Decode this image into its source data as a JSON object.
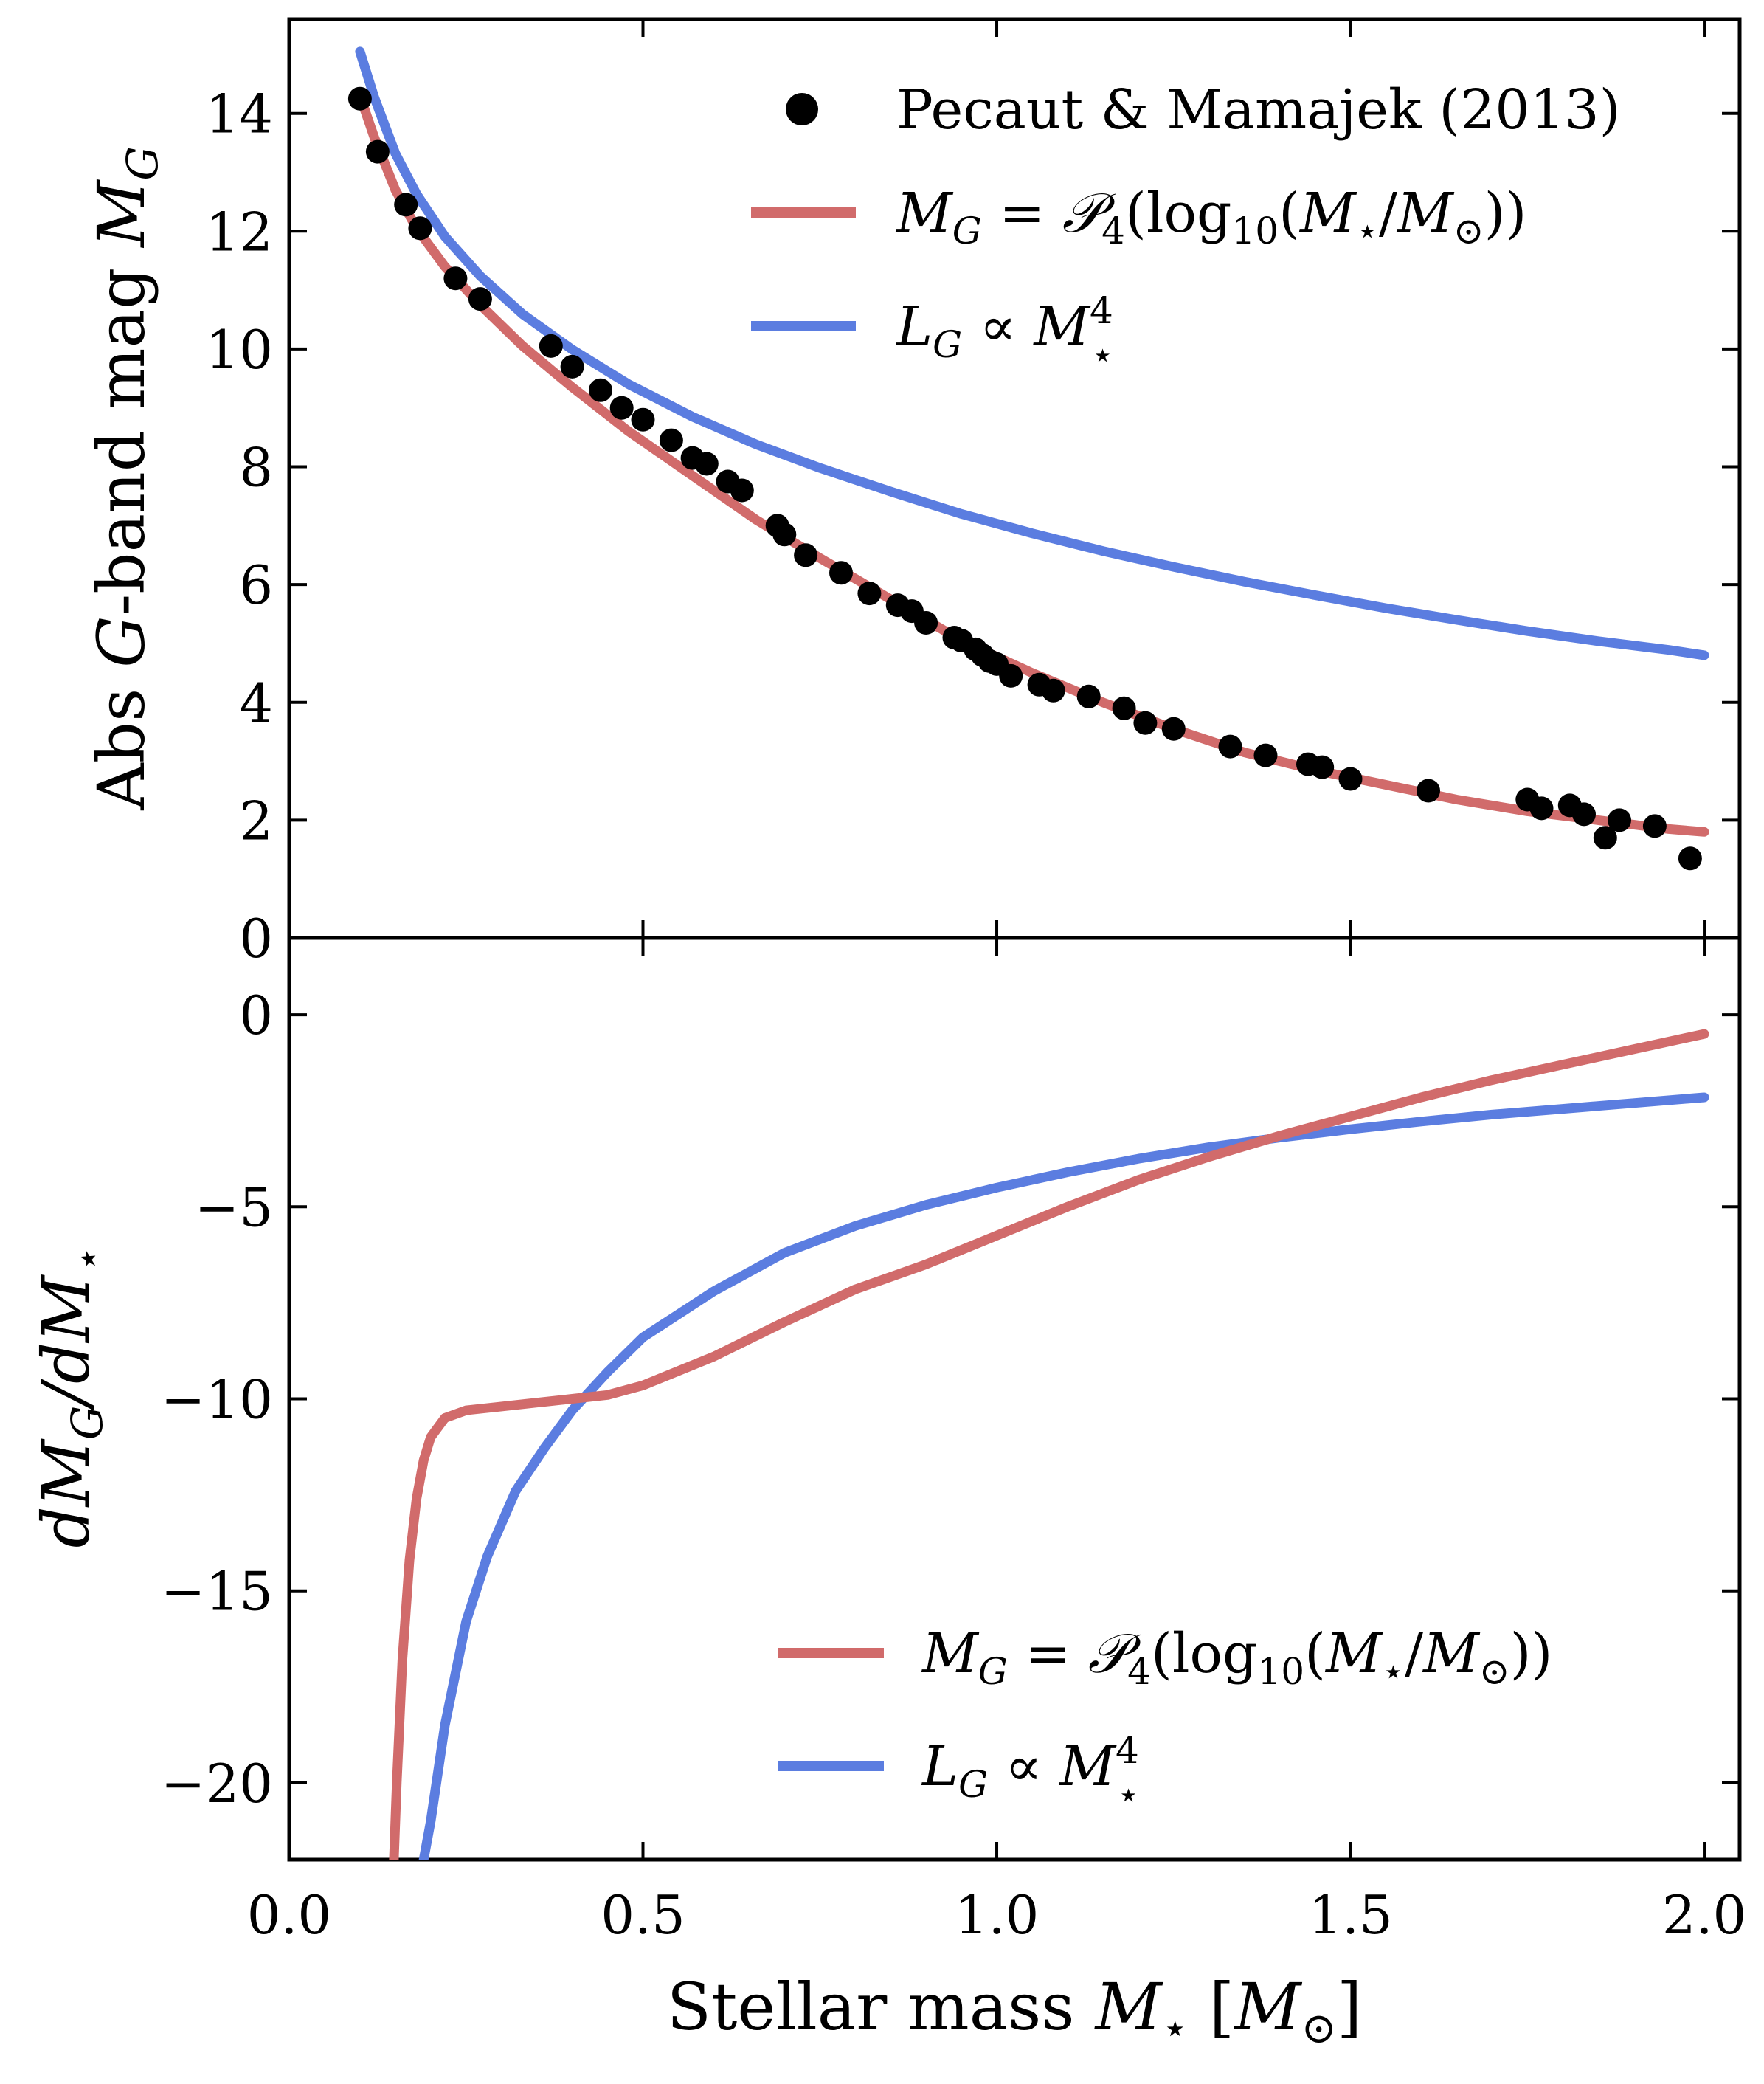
{
  "chart_data": [
    {
      "panel": "top",
      "type": "scatter+line",
      "ylabel": "Abs G-band mag M_G",
      "ylabel_parts": {
        "prefix": "Abs ",
        "g": "G",
        "mid": "-band mag ",
        "m": "M",
        "sub": "G"
      },
      "xlim": [
        0.0,
        2.05
      ],
      "ylim": [
        0,
        15.6
      ],
      "yticks": [
        0,
        2,
        4,
        6,
        8,
        10,
        12,
        14
      ],
      "ytick_labels": [
        "0",
        "2",
        "4",
        "6",
        "8",
        "10",
        "12",
        "14"
      ],
      "legend_position": "top-right",
      "legend": [
        {
          "id": "data",
          "label": "Pecaut & Mamajek (2013)",
          "marker": "circle",
          "color": "#000000"
        },
        {
          "id": "poly",
          "label": "M_G = P_4(log_10(M_star/M_sun))",
          "color": "#d16b6b"
        },
        {
          "id": "power",
          "label": "L_G ∝ M_star^4",
          "color": "#5b7de0"
        }
      ],
      "points": {
        "name": "Pecaut & Mamajek (2013)",
        "x": [
          0.1,
          0.125,
          0.165,
          0.185,
          0.235,
          0.27,
          0.37,
          0.4,
          0.44,
          0.47,
          0.5,
          0.54,
          0.57,
          0.59,
          0.62,
          0.64,
          0.69,
          0.7,
          0.73,
          0.78,
          0.82,
          0.86,
          0.88,
          0.9,
          0.94,
          0.95,
          0.97,
          0.98,
          0.99,
          1.0,
          1.02,
          1.06,
          1.08,
          1.13,
          1.18,
          1.21,
          1.25,
          1.33,
          1.38,
          1.44,
          1.46,
          1.5,
          1.61,
          1.75,
          1.77,
          1.81,
          1.83,
          1.86,
          1.88,
          1.93,
          1.98
        ],
        "y": [
          14.25,
          13.35,
          12.45,
          12.05,
          11.2,
          10.85,
          10.05,
          9.7,
          9.3,
          9.0,
          8.8,
          8.45,
          8.15,
          8.05,
          7.75,
          7.6,
          7.0,
          6.85,
          6.5,
          6.2,
          5.85,
          5.65,
          5.55,
          5.35,
          5.1,
          5.05,
          4.9,
          4.8,
          4.7,
          4.65,
          4.45,
          4.3,
          4.2,
          4.1,
          3.9,
          3.65,
          3.55,
          3.25,
          3.1,
          2.95,
          2.9,
          2.7,
          2.5,
          2.35,
          2.2,
          2.25,
          2.1,
          1.7,
          2.0,
          1.9,
          1.35
        ]
      },
      "series": [
        {
          "name": "polynomial fit",
          "x": [
            0.1,
            0.12,
            0.15,
            0.18,
            0.22,
            0.27,
            0.33,
            0.4,
            0.48,
            0.57,
            0.66,
            0.75,
            0.85,
            0.95,
            1.05,
            1.15,
            1.25,
            1.35,
            1.45,
            1.55,
            1.65,
            1.75,
            1.85,
            1.95,
            2.0
          ],
          "y": [
            14.3,
            13.6,
            12.7,
            12.05,
            11.4,
            10.75,
            10.05,
            9.35,
            8.6,
            7.85,
            7.1,
            6.45,
            5.75,
            5.05,
            4.5,
            4.0,
            3.55,
            3.15,
            2.85,
            2.6,
            2.35,
            2.15,
            2.0,
            1.85,
            1.8
          ]
        },
        {
          "name": "power law L_G ∝ M^4",
          "x": [
            0.1,
            0.12,
            0.15,
            0.18,
            0.22,
            0.27,
            0.33,
            0.4,
            0.48,
            0.57,
            0.66,
            0.75,
            0.85,
            0.95,
            1.05,
            1.15,
            1.25,
            1.35,
            1.45,
            1.55,
            1.65,
            1.75,
            1.85,
            1.95,
            2.0
          ],
          "y": [
            15.05,
            14.28,
            13.32,
            12.63,
            11.91,
            11.24,
            10.59,
            9.99,
            9.4,
            8.85,
            8.38,
            7.98,
            7.58,
            7.2,
            6.87,
            6.57,
            6.3,
            6.05,
            5.82,
            5.6,
            5.4,
            5.21,
            5.04,
            4.89,
            4.8
          ]
        }
      ]
    },
    {
      "panel": "bottom",
      "type": "line",
      "ylabel": "dM_G/dM_star",
      "xlabel": "Stellar mass M_star [M_sun]",
      "xlabel_prefix": "Stellar mass ",
      "xlim": [
        0.0,
        2.05
      ],
      "ylim": [
        -22,
        2
      ],
      "xticks": [
        0.0,
        0.5,
        1.0,
        1.5,
        2.0
      ],
      "xtick_labels": [
        "0.0",
        "0.5",
        "1.0",
        "1.5",
        "2.0"
      ],
      "yticks": [
        0,
        -5,
        -10,
        -15,
        -20
      ],
      "ytick_labels": [
        "0",
        "−5",
        "−10",
        "−15",
        "−20"
      ],
      "legend_position": "bottom-right",
      "series": [
        {
          "name": "polynomial derivative",
          "x": [
            0.148,
            0.152,
            0.16,
            0.17,
            0.18,
            0.19,
            0.2,
            0.22,
            0.25,
            0.3,
            0.35,
            0.4,
            0.45,
            0.5,
            0.6,
            0.7,
            0.8,
            0.9,
            1.0,
            1.1,
            1.2,
            1.3,
            1.4,
            1.5,
            1.6,
            1.7,
            1.8,
            1.9,
            2.0
          ],
          "y": [
            -22,
            -20.0,
            -16.8,
            -14.2,
            -12.6,
            -11.6,
            -11.0,
            -10.5,
            -10.3,
            -10.2,
            -10.1,
            -10.0,
            -9.9,
            -9.65,
            -8.9,
            -8.0,
            -7.15,
            -6.5,
            -5.75,
            -5.0,
            -4.3,
            -3.7,
            -3.15,
            -2.65,
            -2.15,
            -1.7,
            -1.3,
            -0.9,
            -0.5
          ]
        },
        {
          "name": "power law derivative",
          "x": [
            0.19,
            0.2,
            0.22,
            0.25,
            0.28,
            0.32,
            0.36,
            0.4,
            0.45,
            0.5,
            0.6,
            0.7,
            0.8,
            0.9,
            1.0,
            1.1,
            1.2,
            1.3,
            1.4,
            1.5,
            1.6,
            1.7,
            1.8,
            1.9,
            2.0
          ],
          "y": [
            -22,
            -21.0,
            -18.5,
            -15.8,
            -14.1,
            -12.4,
            -11.3,
            -10.3,
            -9.3,
            -8.4,
            -7.2,
            -6.2,
            -5.5,
            -4.95,
            -4.5,
            -4.1,
            -3.75,
            -3.45,
            -3.2,
            -2.98,
            -2.78,
            -2.6,
            -2.45,
            -2.3,
            -2.15
          ]
        }
      ]
    }
  ]
}
